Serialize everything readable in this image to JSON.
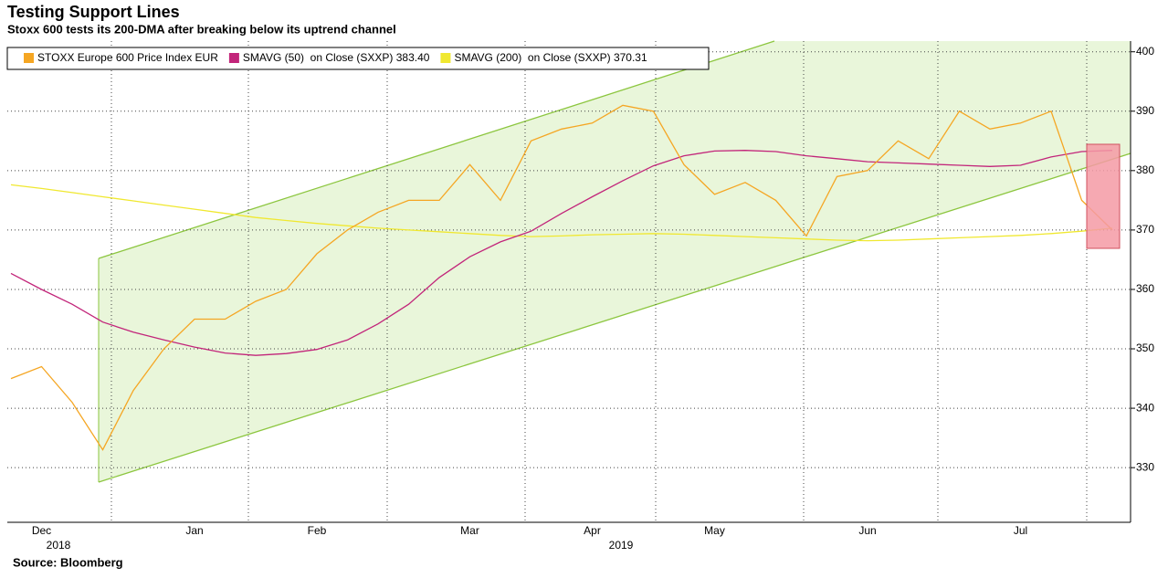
{
  "chart_data": {
    "type": "line",
    "title": "Testing Support Lines",
    "subtitle": "Stoxx 600 tests its 200-DMA after breaking below its uptrend channel",
    "source": "Source: Bloomberg",
    "year_labels": [
      "2018",
      "2019"
    ],
    "categories": [
      null,
      "Dec",
      null,
      null,
      null,
      null,
      "Jan",
      null,
      null,
      null,
      "Feb",
      null,
      null,
      null,
      null,
      "Mar",
      null,
      null,
      null,
      "Apr",
      null,
      null,
      null,
      "May",
      null,
      null,
      null,
      null,
      "Jun",
      null,
      null,
      null,
      null,
      "Jul",
      null,
      null,
      null
    ],
    "series": [
      {
        "name": "STOXX Europe 600 Price Index EUR",
        "color": "#f5a623",
        "values": [
          345,
          347,
          341,
          333,
          343,
          350,
          355,
          355,
          358,
          360,
          366,
          370,
          373,
          375,
          375,
          381,
          375,
          385,
          387,
          388,
          391,
          390,
          381,
          376,
          378,
          375,
          369,
          379,
          380,
          385,
          382,
          390,
          387,
          388,
          390,
          375,
          370
        ]
      },
      {
        "name": "SMAVG (50)  on Close (SXXP) 383.40",
        "color": "#c2257a",
        "values": [
          362.7,
          360,
          357.5,
          354.5,
          352.8,
          351.5,
          350.3,
          349.3,
          348.9,
          349.2,
          349.9,
          351.5,
          354.2,
          357.5,
          362,
          365.5,
          368,
          369.8,
          372.8,
          375.6,
          378.3,
          380.8,
          382.5,
          383.3,
          383.4,
          383.2,
          382.5,
          382,
          381.5,
          381.3,
          381.1,
          380.9,
          380.7,
          380.9,
          382.3,
          383.2,
          383.4
        ]
      },
      {
        "name": "SMAVG (200)  on Close (SXXP) 370.31",
        "color": "#f0e830",
        "values": [
          377.6,
          377.0,
          376.3,
          375.6,
          374.9,
          374.2,
          373.5,
          372.8,
          372.1,
          371.6,
          371.1,
          370.7,
          370.3,
          370.0,
          369.7,
          369.4,
          369.1,
          368.9,
          369.0,
          369.2,
          369.3,
          369.4,
          369.3,
          369.1,
          368.9,
          368.7,
          368.5,
          368.3,
          368.2,
          368.3,
          368.5,
          368.7,
          368.9,
          369.1,
          369.4,
          369.8,
          370.3
        ]
      }
    ],
    "ylim": [
      320.8,
      401.8
    ],
    "yticks": [
      330,
      340,
      350,
      360,
      370,
      380,
      390,
      400
    ],
    "grid": true
  }
}
